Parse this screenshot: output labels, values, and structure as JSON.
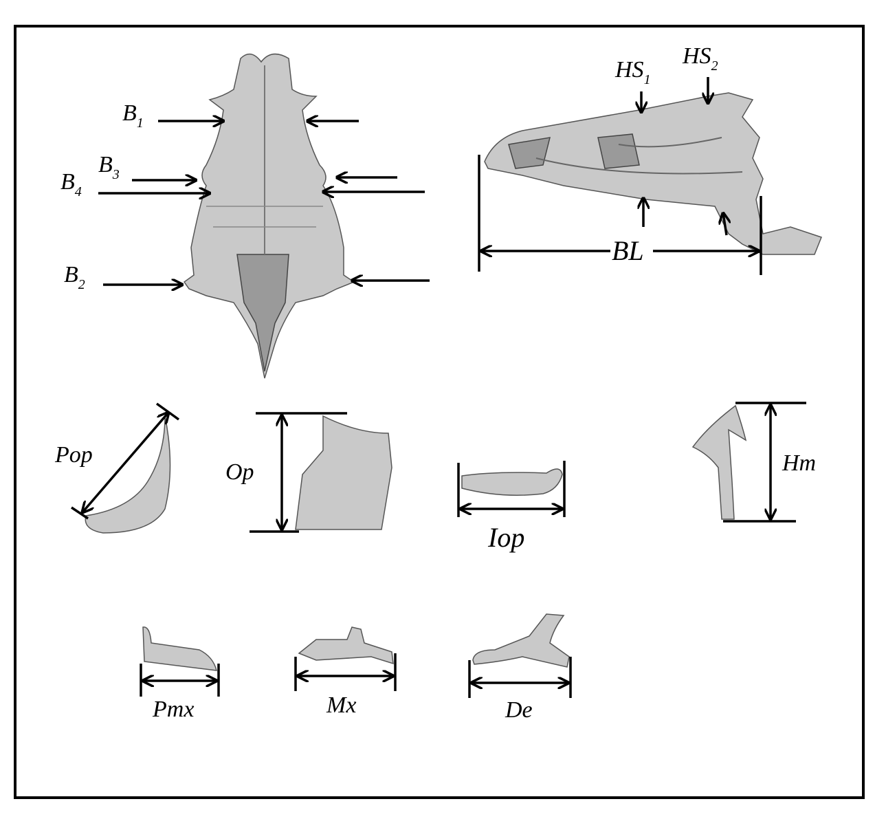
{
  "labels": {
    "b1": {
      "main": "B",
      "sub": "1"
    },
    "b2": {
      "main": "B",
      "sub": "2"
    },
    "b3": {
      "main": "B",
      "sub": "3"
    },
    "b4": {
      "main": "B",
      "sub": "4"
    },
    "hs1": {
      "main": "HS",
      "sub": "1"
    },
    "hs2": {
      "main": "HS",
      "sub": "2"
    },
    "bl": "BL",
    "pop": "Pop",
    "op": "Op",
    "iop": "Iop",
    "hm": "Hm",
    "pmx": "Pmx",
    "mx": "Mx",
    "de": "De"
  },
  "colors": {
    "line": "#000000",
    "bone": "#c9c9c9",
    "frame": "#000000"
  }
}
